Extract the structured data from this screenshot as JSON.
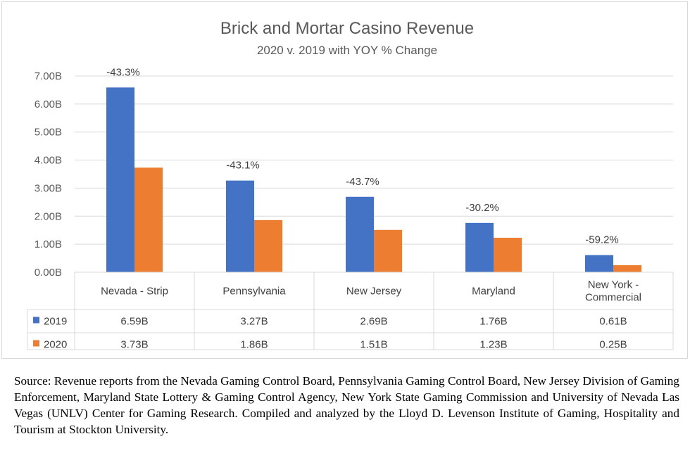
{
  "chart_data": {
    "type": "bar",
    "title": "Brick and Mortar Casino Revenue",
    "subtitle": "2020 v. 2019 with YOY % Change",
    "categories": [
      "Nevada - Strip",
      "Pennsylvania",
      "New Jersey",
      "Maryland",
      "New York - Commercial"
    ],
    "category_lines": [
      [
        "Nevada - Strip"
      ],
      [
        "Pennsylvania"
      ],
      [
        "New Jersey"
      ],
      [
        "Maryland"
      ],
      [
        "New York -",
        "Commercial"
      ]
    ],
    "series": [
      {
        "name": "2019",
        "color": "#4472c4",
        "values": [
          6.59,
          3.27,
          2.69,
          1.76,
          0.61
        ],
        "labels": [
          "6.59B",
          "3.27B",
          "2.69B",
          "1.76B",
          "0.61B"
        ]
      },
      {
        "name": "2020",
        "color": "#ed7d31",
        "values": [
          3.73,
          1.86,
          1.51,
          1.23,
          0.25
        ],
        "labels": [
          "3.73B",
          "1.86B",
          "1.51B",
          "1.23B",
          "0.25B"
        ]
      }
    ],
    "yoy_change": [
      "-43.3%",
      "-43.1%",
      "-43.7%",
      "-30.2%",
      "-59.2%"
    ],
    "ylim": [
      0,
      7
    ],
    "yticks": [
      0,
      1,
      2,
      3,
      4,
      5,
      6,
      7
    ],
    "ytick_labels": [
      "0.00B",
      "1.00B",
      "2.00B",
      "3.00B",
      "4.00B",
      "5.00B",
      "6.00B",
      "7.00B"
    ],
    "grid": true,
    "legend": "data-table"
  },
  "source_note": "Source: Revenue reports from the Nevada Gaming Control Board, Pennsylvania Gaming Control Board, New Jersey Division of Gaming Enforcement, Maryland State Lottery & Gaming Control Agency, New York State Gaming Commission and University of Nevada Las Vegas (UNLV) Center for Gaming Research. Compiled and analyzed by the Lloyd D. Levenson Institute of Gaming, Hospitality and Tourism at Stockton University."
}
